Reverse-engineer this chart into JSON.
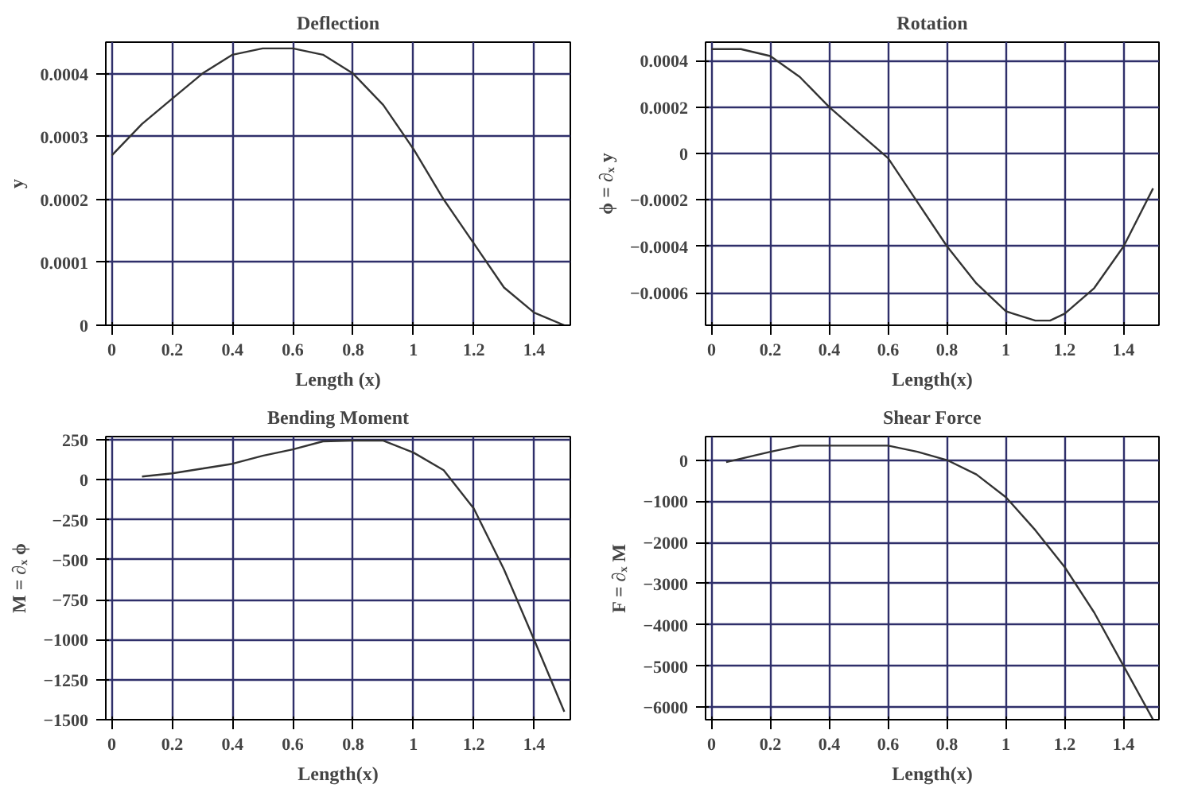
{
  "chart_data": [
    {
      "type": "line",
      "title": "Deflection",
      "xlabel": "Length (x)",
      "ylabel": "y",
      "grid": true,
      "xlim": [
        -0.02,
        1.52
      ],
      "ylim": [
        0,
        0.00045
      ],
      "xticks": [
        0,
        0.2,
        0.4,
        0.6,
        0.8,
        1,
        1.2,
        1.4
      ],
      "yticks": [
        0,
        0.0001,
        0.0002,
        0.0003,
        0.0004
      ],
      "series": [
        {
          "color": "#333333",
          "x": [
            0,
            0.1,
            0.2,
            0.3,
            0.4,
            0.5,
            0.6,
            0.7,
            0.8,
            0.9,
            1.0,
            1.1,
            1.2,
            1.3,
            1.4,
            1.5
          ],
          "values": [
            0.00027,
            0.00032,
            0.00036,
            0.0004,
            0.00043,
            0.00044,
            0.00044,
            0.00043,
            0.0004,
            0.00035,
            0.00028,
            0.0002,
            0.00013,
            6e-05,
            2e-05,
            0
          ]
        }
      ]
    },
    {
      "type": "line",
      "title": "Rotation",
      "xlabel": "Length(x)",
      "ylabel": "ϕ = ∂ₓ y",
      "grid": true,
      "xlim": [
        -0.02,
        1.52
      ],
      "ylim": [
        -0.00074,
        0.00048
      ],
      "xticks": [
        0,
        0.2,
        0.4,
        0.6,
        0.8,
        1,
        1.2,
        1.4
      ],
      "yticks": [
        -0.0006,
        -0.0004,
        -0.0002,
        0,
        0.0002,
        0.0004
      ],
      "series": [
        {
          "color": "#333333",
          "x": [
            0,
            0.1,
            0.2,
            0.3,
            0.4,
            0.5,
            0.6,
            0.7,
            0.8,
            0.9,
            1.0,
            1.1,
            1.15,
            1.2,
            1.3,
            1.4,
            1.5
          ],
          "values": [
            0.00045,
            0.00045,
            0.00042,
            0.00033,
            0.0002,
            9e-05,
            -2e-05,
            -0.00021,
            -0.0004,
            -0.00056,
            -0.00068,
            -0.00072,
            -0.00072,
            -0.00069,
            -0.00058,
            -0.0004,
            -0.00015
          ]
        }
      ]
    },
    {
      "type": "line",
      "title": "Bending Moment",
      "xlabel": "Length(x)",
      "ylabel": "M = ∂ₓ ϕ",
      "grid": true,
      "xlim": [
        -0.02,
        1.52
      ],
      "ylim": [
        -1500,
        270
      ],
      "xticks": [
        0,
        0.2,
        0.4,
        0.6,
        0.8,
        1,
        1.2,
        1.4
      ],
      "yticks": [
        -1500,
        -1250,
        -1000,
        -750,
        -500,
        -250,
        0,
        250
      ],
      "series": [
        {
          "color": "#333333",
          "x": [
            0.1,
            0.2,
            0.3,
            0.4,
            0.5,
            0.6,
            0.7,
            0.8,
            0.9,
            1.0,
            1.1,
            1.2,
            1.3,
            1.4,
            1.5
          ],
          "values": [
            20,
            40,
            70,
            100,
            150,
            190,
            240,
            245,
            245,
            170,
            60,
            -180,
            -560,
            -1000,
            -1450
          ]
        }
      ]
    },
    {
      "type": "line",
      "title": "Shear Force",
      "xlabel": "Length(x)",
      "ylabel": "F = ∂ₓ M",
      "grid": true,
      "xlim": [
        -0.02,
        1.52
      ],
      "ylim": [
        -6300,
        570
      ],
      "xticks": [
        0,
        0.2,
        0.4,
        0.6,
        0.8,
        1,
        1.2,
        1.4
      ],
      "yticks": [
        -6000,
        -5000,
        -4000,
        -3000,
        -2000,
        -1000,
        0
      ],
      "series": [
        {
          "color": "#333333",
          "x": [
            0.05,
            0.2,
            0.3,
            0.4,
            0.5,
            0.6,
            0.7,
            0.8,
            0.9,
            1.0,
            1.1,
            1.2,
            1.3,
            1.4,
            1.5
          ],
          "values": [
            -50,
            200,
            350,
            350,
            350,
            350,
            200,
            0,
            -350,
            -900,
            -1700,
            -2600,
            -3700,
            -5000,
            -6300
          ]
        }
      ]
    }
  ]
}
